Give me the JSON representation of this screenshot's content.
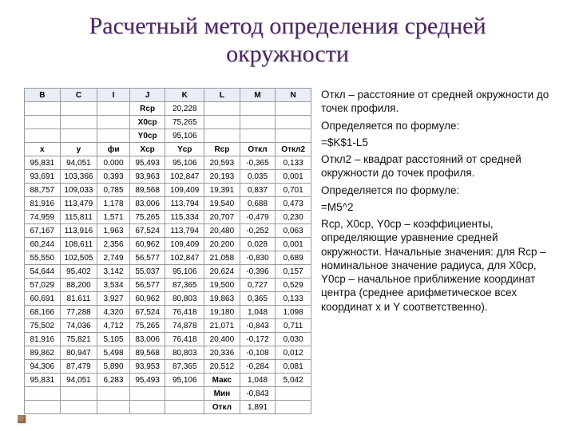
{
  "title": "Расчетный метод определения средней окружности",
  "table": {
    "col_headers": [
      "B",
      "C",
      "I",
      "J",
      "K",
      "L",
      "M",
      "N"
    ],
    "coef_rows": [
      [
        "",
        "",
        "",
        "Rcp",
        "20,228",
        "",
        "",
        ""
      ],
      [
        "",
        "",
        "",
        "X0cp",
        "75,265",
        "",
        "",
        ""
      ],
      [
        "",
        "",
        "",
        "Y0cp",
        "95,106",
        "",
        "",
        ""
      ]
    ],
    "sub_headers": [
      "x",
      "y",
      "фи",
      "Xср",
      "Yср",
      "Rср",
      "Откл",
      "Откл2"
    ],
    "rows": [
      [
        "95,831",
        "94,051",
        "0,000",
        "95,493",
        "95,106",
        "20,593",
        "-0,365",
        "0,133"
      ],
      [
        "93,691",
        "103,366",
        "0,393",
        "93,963",
        "102,847",
        "20,193",
        "0,035",
        "0,001"
      ],
      [
        "88,757",
        "109,033",
        "0,785",
        "89,568",
        "109,409",
        "19,391",
        "0,837",
        "0,701"
      ],
      [
        "81,916",
        "113,479",
        "1,178",
        "83,006",
        "113,794",
        "19,540",
        "0,688",
        "0,473"
      ],
      [
        "74,959",
        "115,811",
        "1,571",
        "75,265",
        "115,334",
        "20,707",
        "-0,479",
        "0,230"
      ],
      [
        "67,167",
        "113,916",
        "1,963",
        "67,524",
        "113,794",
        "20,480",
        "-0,252",
        "0,063"
      ],
      [
        "60,244",
        "108,611",
        "2,356",
        "60,962",
        "109,409",
        "20,200",
        "0,028",
        "0,001"
      ],
      [
        "55,550",
        "102,505",
        "2,749",
        "56,577",
        "102,847",
        "21,058",
        "-0,830",
        "0,689"
      ],
      [
        "54,644",
        "95,402",
        "3,142",
        "55,037",
        "95,106",
        "20,624",
        "-0,396",
        "0,157"
      ],
      [
        "57,029",
        "88,200",
        "3,534",
        "56,577",
        "87,365",
        "19,500",
        "0,727",
        "0,529"
      ],
      [
        "60,691",
        "81,611",
        "3,927",
        "60,962",
        "80,803",
        "19,863",
        "0,365",
        "0,133"
      ],
      [
        "68,166",
        "77,288",
        "4,320",
        "67,524",
        "76,418",
        "19,180",
        "1,048",
        "1,098"
      ],
      [
        "75,502",
        "74,036",
        "4,712",
        "75,265",
        "74,878",
        "21,071",
        "-0,843",
        "0,711"
      ],
      [
        "81,916",
        "75,821",
        "5,105",
        "83,006",
        "76,418",
        "20,400",
        "-0,172",
        "0,030"
      ],
      [
        "89,862",
        "80,947",
        "5,498",
        "89,568",
        "80,803",
        "20,336",
        "-0,108",
        "0,012"
      ],
      [
        "94,306",
        "87,479",
        "5,890",
        "93,953",
        "87,365",
        "20,512",
        "-0,284",
        "0,081"
      ],
      [
        "95,831",
        "94,051",
        "6,283",
        "95,493",
        "95,106",
        "Макс",
        "1,048",
        "5,042"
      ]
    ],
    "footer": [
      [
        "",
        "",
        "",
        "",
        "",
        "Мин",
        "-0,843",
        ""
      ],
      [
        "",
        "",
        "",
        "",
        "",
        "Откл",
        "1,891",
        ""
      ]
    ],
    "col_widths": [
      "44",
      "46",
      "40",
      "44",
      "48",
      "44",
      "44",
      "44"
    ]
  },
  "text": {
    "p1a": "Откл – расстояние от средней окружности до точек профиля.",
    "p1b": "Определяется по формуле:",
    "f1": "=$K$1-L5",
    "p2a": "Откл2 – квадрат расстояний от средней окружности до точек профиля.",
    "p2b": "Определяется по формуле:",
    "f2": "=M5^2",
    "p3": "Rср, X0ср, Y0ср – коэффициенты, определяющие уравнение средней окружности. Начальные значения: для Rср – номинальное значение радиуса, для X0ср, Y0ср – начальное приближение координат центра (среднее арифметическое всех координат x и Y соответственно)."
  },
  "colors": {
    "title": "#4b2763",
    "header_bg": "#e9edf4",
    "border": "#9a9a9a",
    "bullet": "#a9845e"
  }
}
